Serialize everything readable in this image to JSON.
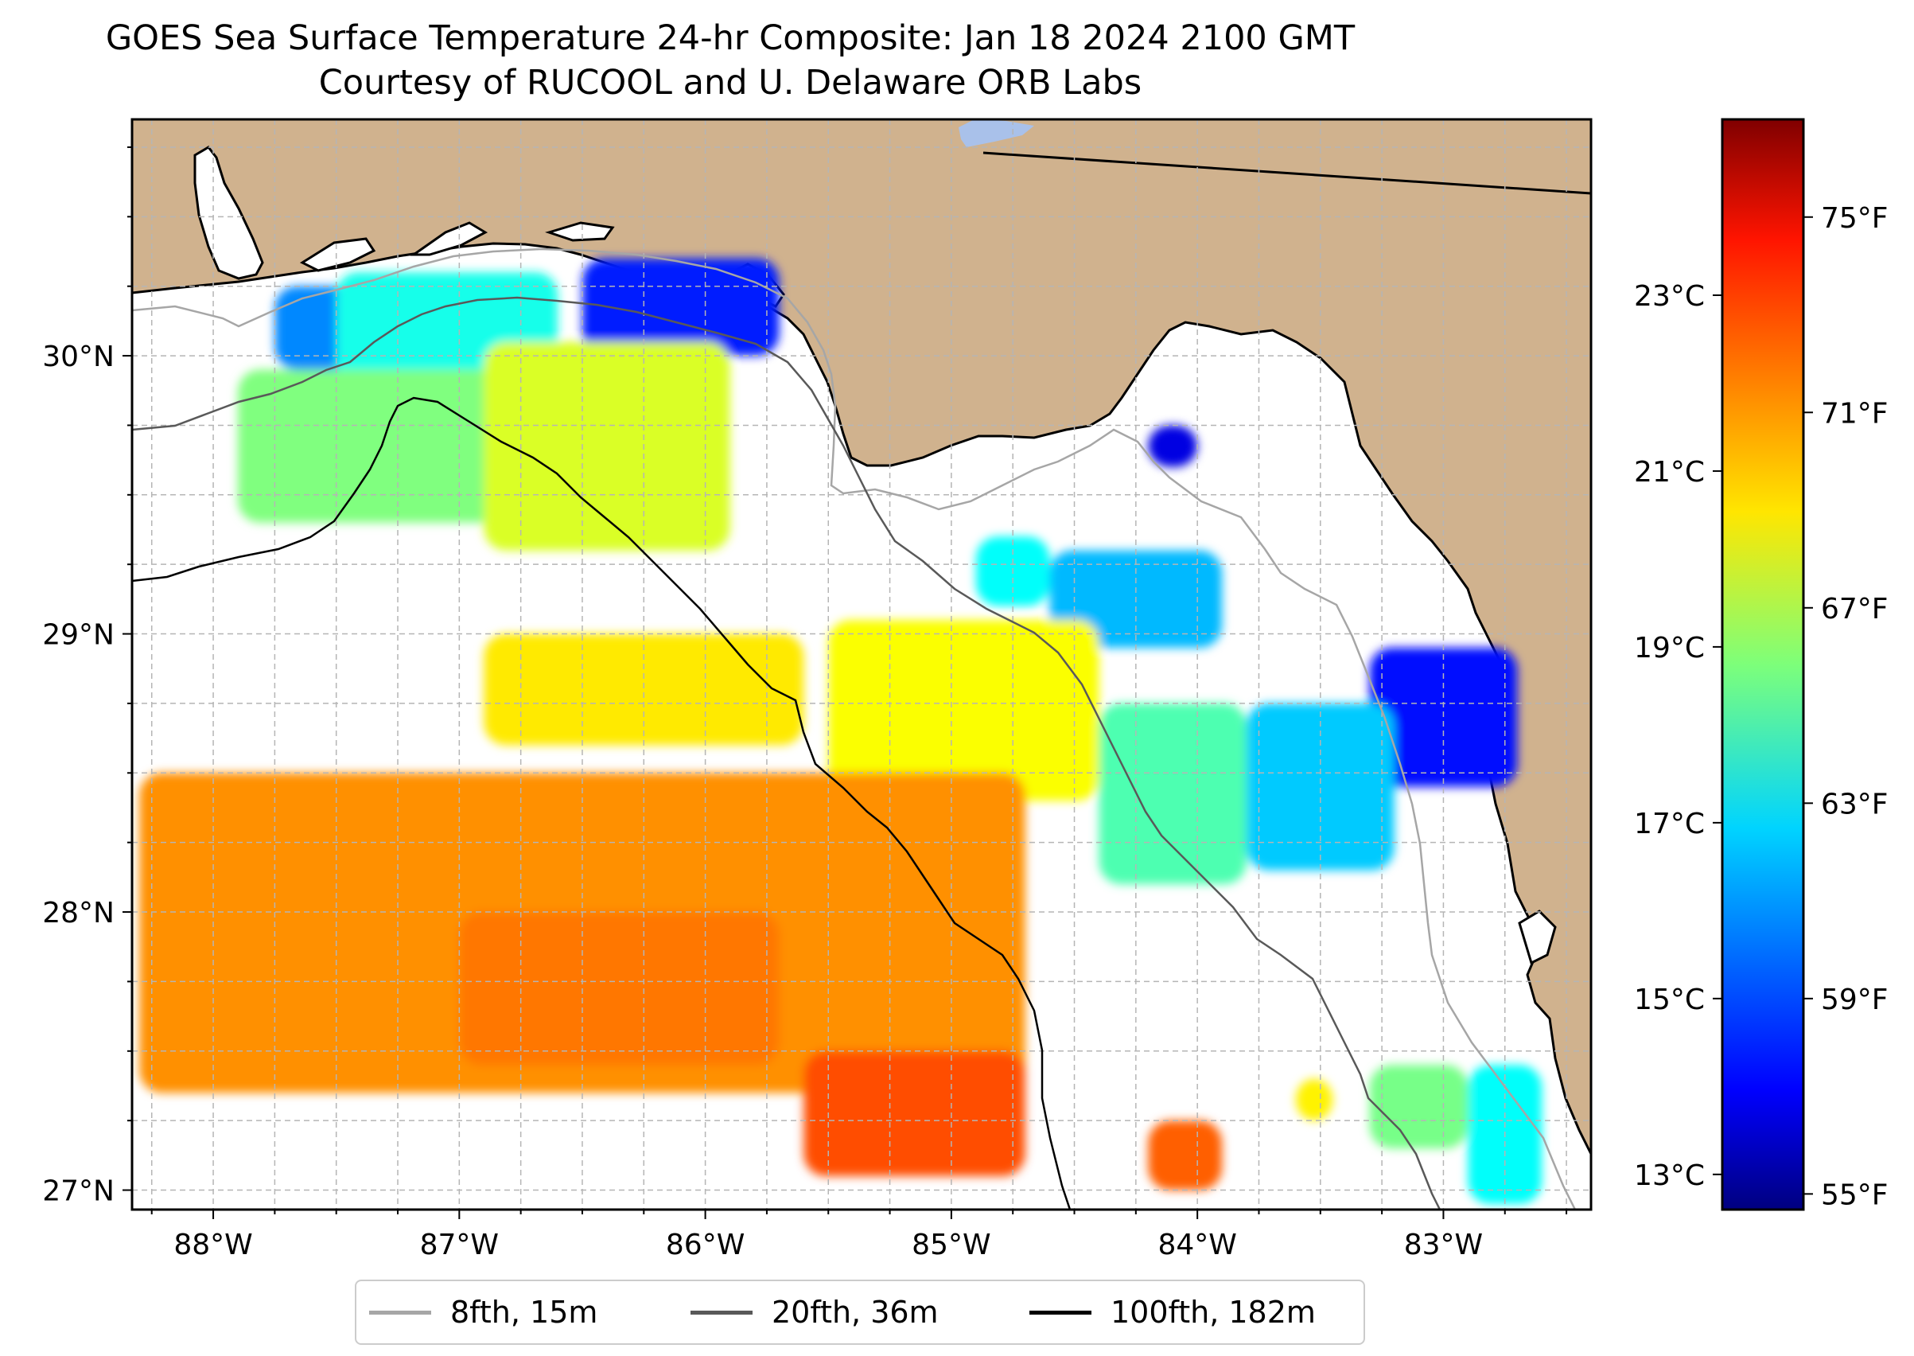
{
  "title": {
    "line1": "GOES Sea Surface Temperature 24-hr Composite: Jan 18 2024 2100 GMT",
    "line2": "Courtesy of RUCOOL and U. Delaware ORB Labs"
  },
  "map": {
    "lat_range": [
      26.93,
      30.85
    ],
    "lon_range": [
      -88.33,
      -82.4
    ],
    "lat_ticks": [
      "30°N",
      "29°N",
      "28°N",
      "27°N"
    ],
    "lon_ticks": [
      "88°W",
      "87°W",
      "86°W",
      "85°W",
      "84°W",
      "83°W"
    ],
    "land_color": "#d0b28e",
    "grid": true
  },
  "colorbar": {
    "colormap": "jet",
    "celsius_range": [
      12.6,
      25.0
    ],
    "celsius_labels": [
      "23°C",
      "21°C",
      "19°C",
      "17°C",
      "15°C",
      "13°C"
    ],
    "fahrenheit_labels": [
      "75°F",
      "71°F",
      "67°F",
      "63°F",
      "59°F",
      "55°F"
    ]
  },
  "legend": {
    "items": [
      {
        "label": "8fth, 15m",
        "color": "#a6a6a6"
      },
      {
        "label": "20fth, 36m",
        "color": "#595959"
      },
      {
        "label": "100fth, 182m",
        "color": "#000000"
      }
    ]
  },
  "chart_data": {
    "type": "heatmap",
    "title": "GOES Sea Surface Temperature 24-hr Composite: Jan 18 2024 2100 GMT",
    "subtitle": "Courtesy of RUCOOL and U. Delaware ORB Labs",
    "units": "°C",
    "regions": [
      {
        "lon": [
          -87.75,
          -87.2
        ],
        "lat": [
          29.95,
          30.25
        ],
        "value": 15.8
      },
      {
        "lon": [
          -87.5,
          -86.6
        ],
        "lat": [
          29.85,
          30.3
        ],
        "value": 17.5
      },
      {
        "lon": [
          -86.5,
          -85.7
        ],
        "lat": [
          30.0,
          30.35
        ],
        "value": 14.5
      },
      {
        "lon": [
          -87.9,
          -86.6
        ],
        "lat": [
          29.4,
          29.95
        ],
        "value": 18.8
      },
      {
        "lon": [
          -86.9,
          -85.9
        ],
        "lat": [
          29.3,
          30.05
        ],
        "value": 19.9
      },
      {
        "lon": [
          -84.2,
          -84.0
        ],
        "lat": [
          29.6,
          29.75
        ],
        "value": 13.8
      },
      {
        "lon": [
          -84.9,
          -84.6
        ],
        "lat": [
          29.1,
          29.35
        ],
        "value": 17.3
      },
      {
        "lon": [
          -84.6,
          -83.9
        ],
        "lat": [
          28.95,
          29.3
        ],
        "value": 16.4
      },
      {
        "lon": [
          -83.3,
          -82.7
        ],
        "lat": [
          28.45,
          28.95
        ],
        "value": 14.3
      },
      {
        "lon": [
          -83.8,
          -83.2
        ],
        "lat": [
          28.15,
          28.75
        ],
        "value": 16.6
      },
      {
        "lon": [
          -84.4,
          -83.8
        ],
        "lat": [
          28.1,
          28.75
        ],
        "value": 18.2
      },
      {
        "lon": [
          -85.5,
          -84.4
        ],
        "lat": [
          28.4,
          29.05
        ],
        "value": 20.3
      },
      {
        "lon": [
          -86.9,
          -85.6
        ],
        "lat": [
          28.6,
          29.0
        ],
        "value": 20.6
      },
      {
        "lon": [
          -88.3,
          -84.7
        ],
        "lat": [
          27.35,
          28.5
        ],
        "value": 21.7
      },
      {
        "lon": [
          -87.0,
          -85.7
        ],
        "lat": [
          27.45,
          28.0
        ],
        "value": 22.0
      },
      {
        "lon": [
          -85.6,
          -84.7
        ],
        "lat": [
          27.05,
          27.5
        ],
        "value": 22.5
      },
      {
        "lon": [
          -84.2,
          -83.9
        ],
        "lat": [
          27.0,
          27.25
        ],
        "value": 22.3
      },
      {
        "lon": [
          -83.6,
          -83.45
        ],
        "lat": [
          27.25,
          27.4
        ],
        "value": 20.5
      },
      {
        "lon": [
          -83.3,
          -82.9
        ],
        "lat": [
          27.15,
          27.45
        ],
        "value": 18.7
      },
      {
        "lon": [
          -82.9,
          -82.6
        ],
        "lat": [
          26.95,
          27.45
        ],
        "value": 17.3
      }
    ],
    "contours": [
      {
        "name": "8fth, 15m"
      },
      {
        "name": "20fth, 36m"
      },
      {
        "name": "100fth, 182m"
      }
    ]
  }
}
